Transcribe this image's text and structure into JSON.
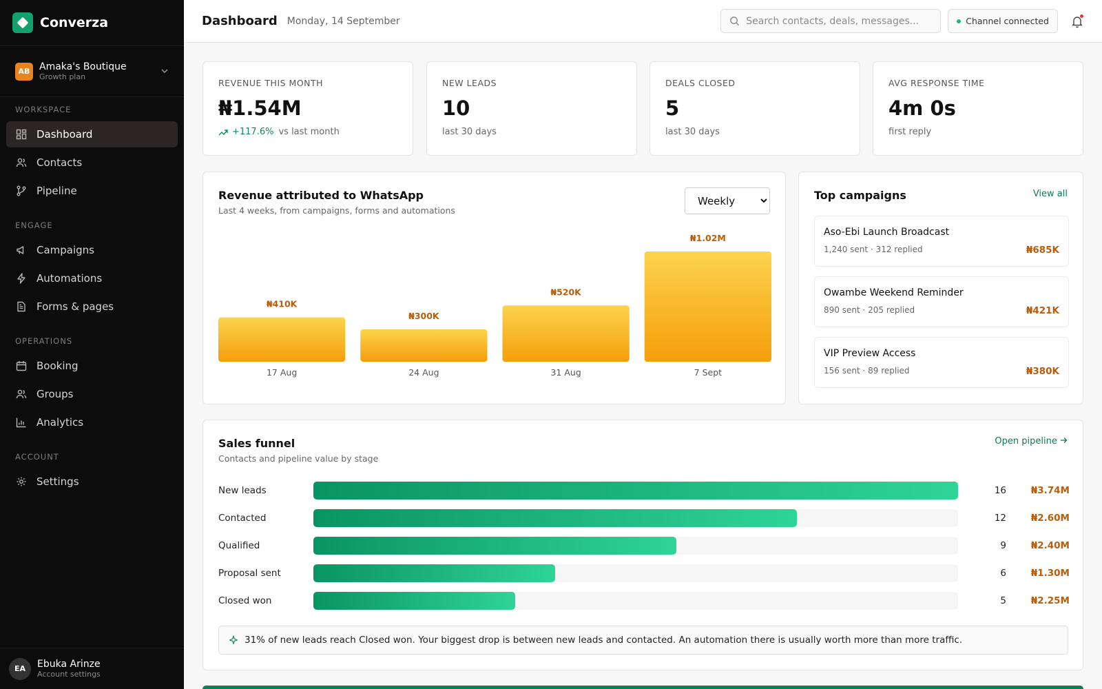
{
  "brand": {
    "name": "Converza"
  },
  "workspace": {
    "initials": "AB",
    "name": "Amaka's Boutique",
    "plan": "Growth plan"
  },
  "nav": {
    "sections": [
      {
        "title": "WORKSPACE",
        "items": [
          {
            "label": "Dashboard",
            "icon": "dashboard-icon",
            "active": true
          },
          {
            "label": "Contacts",
            "icon": "users-icon"
          },
          {
            "label": "Pipeline",
            "icon": "pipeline-icon"
          }
        ]
      },
      {
        "title": "ENGAGE",
        "items": [
          {
            "label": "Campaigns",
            "icon": "megaphone-icon"
          },
          {
            "label": "Automations",
            "icon": "lightning-icon"
          },
          {
            "label": "Forms & pages",
            "icon": "document-icon"
          }
        ]
      },
      {
        "title": "OPERATIONS",
        "items": [
          {
            "label": "Booking",
            "icon": "calendar-icon"
          },
          {
            "label": "Groups",
            "icon": "users-icon"
          },
          {
            "label": "Analytics",
            "icon": "bar-chart-icon"
          }
        ]
      },
      {
        "title": "ACCOUNT",
        "items": [
          {
            "label": "Settings",
            "icon": "gear-icon"
          }
        ]
      }
    ]
  },
  "user": {
    "initials": "EA",
    "name": "Ebuka Arinze",
    "subtitle": "Account settings"
  },
  "header": {
    "title": "Dashboard",
    "date": "Monday, 14 September",
    "search_placeholder": "Search contacts, deals, messages...",
    "channel_status": "Channel connected"
  },
  "kpis": [
    {
      "label": "REVENUE THIS MONTH",
      "value": "₦1.54M",
      "trend": "+117.6%",
      "sub": "vs last month"
    },
    {
      "label": "NEW LEADS",
      "value": "10",
      "sub": "last 30 days"
    },
    {
      "label": "DEALS CLOSED",
      "value": "5",
      "sub": "last 30 days"
    },
    {
      "label": "AVG RESPONSE TIME",
      "value": "4m 0s",
      "sub": "first reply"
    }
  ],
  "revenue_card": {
    "title": "Revenue attributed to WhatsApp",
    "subtitle": "Last 4 weeks, from campaigns, forms and automations",
    "period": {
      "selected": "Weekly",
      "options": [
        "Weekly"
      ]
    }
  },
  "chart_data": {
    "type": "bar",
    "title": "Revenue attributed to WhatsApp",
    "categories": [
      "17 Aug",
      "24 Aug",
      "31 Aug",
      "7 Sept"
    ],
    "values": [
      410000,
      300000,
      520000,
      1020000
    ],
    "value_labels": [
      "₦410K",
      "₦300K",
      "₦520K",
      "₦1.02M"
    ],
    "xlabel": "",
    "ylabel": "",
    "ylim": [
      0,
      1020000
    ],
    "grid": false,
    "colors": {
      "bar_top": "#fcd34d",
      "bar_bottom": "#f59e0b",
      "label": "#b85e0a"
    }
  },
  "campaigns": {
    "title": "Top campaigns",
    "view_all": "View all",
    "items": [
      {
        "name": "Aso-Ebi Launch Broadcast",
        "stats": "1,240 sent · 312 replied",
        "value": "₦685K"
      },
      {
        "name": "Owambe Weekend Reminder",
        "stats": "890 sent · 205 replied",
        "value": "₦421K"
      },
      {
        "name": "VIP Preview Access",
        "stats": "156 sent · 89 replied",
        "value": "₦380K"
      }
    ]
  },
  "funnel": {
    "title": "Sales funnel",
    "subtitle": "Contacts and pipeline value by stage",
    "link": "Open pipeline",
    "stages": [
      {
        "label": "New leads",
        "count": "16",
        "value": "₦3.74M",
        "fraction": 1.0
      },
      {
        "label": "Contacted",
        "count": "12",
        "value": "₦2.60M",
        "fraction": 0.75
      },
      {
        "label": "Qualified",
        "count": "9",
        "value": "₦2.40M",
        "fraction": 0.5625
      },
      {
        "label": "Proposal sent",
        "count": "6",
        "value": "₦1.30M",
        "fraction": 0.375
      },
      {
        "label": "Closed won",
        "count": "5",
        "value": "₦2.25M",
        "fraction": 0.3125
      }
    ],
    "insight": "31% of new leads reach Closed won. Your biggest drop is between new leads and contacted. An automation there is usually worth more than more traffic."
  },
  "colors": {
    "accent": "#12a06b",
    "sidebar_bg": "#0c0c0c",
    "money": "#b85e0a",
    "link": "#0f7a52"
  }
}
